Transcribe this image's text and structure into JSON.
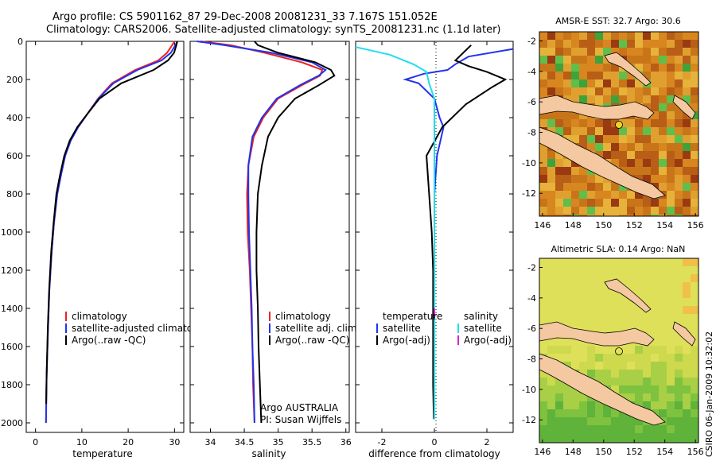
{
  "header": {
    "line1": "Argo profile: CS 5901162_87 29-Dec-2008 20081231_33 7.167S 151.052E",
    "line2": "Climatology: CARS2006. Satellite-adjusted climatology: synTS_20081231.nc (1.1d later)"
  },
  "credit": "CSIRO 06-Jan-2009 10:32:02",
  "colors": {
    "red": "#ee2222",
    "blue": "#2233ee",
    "black": "#000000",
    "cyan": "#22ddee",
    "magenta": "#dd22dd"
  },
  "chart_data": [
    {
      "type": "line",
      "id": "temperature",
      "xlabel": "temperature",
      "ylabel": "",
      "xlim": [
        -2,
        32
      ],
      "ylim": [
        2050,
        0
      ],
      "xticks": [
        0,
        10,
        20,
        30
      ],
      "yticks": [
        0,
        200,
        400,
        600,
        800,
        1000,
        1200,
        1400,
        1600,
        1800,
        2000
      ],
      "legend": [
        "climatology",
        "satellite-adjusted climatology",
        "Argo(..raw -QC)"
      ],
      "series": [
        {
          "name": "climatology",
          "color": "red",
          "x": [
            30,
            29.5,
            28.4,
            26.5,
            21.5,
            16.5,
            13.5,
            11.2,
            9.2,
            7.6,
            6.4,
            5.5,
            4.7,
            4.0,
            3.5,
            3.0,
            2.7,
            2.4,
            2.25
          ],
          "y": [
            0,
            20,
            60,
            100,
            150,
            220,
            300,
            380,
            450,
            520,
            600,
            700,
            800,
            950,
            1100,
            1300,
            1500,
            1750,
            2000
          ]
        },
        {
          "name": "satellite-adjusted climatology",
          "color": "blue",
          "x": [
            30.6,
            30.2,
            29.2,
            27.2,
            22.0,
            16.8,
            13.6,
            11.2,
            9.2,
            7.6,
            6.4,
            5.5,
            4.7,
            4.0,
            3.5,
            3.0,
            2.7,
            2.4,
            2.25
          ],
          "y": [
            0,
            20,
            60,
            100,
            150,
            220,
            300,
            380,
            450,
            520,
            600,
            700,
            800,
            950,
            1100,
            1300,
            1500,
            1750,
            2000
          ]
        },
        {
          "name": "Argo(..raw -QC)",
          "color": "black",
          "x": [
            30.6,
            30.4,
            29.9,
            28.6,
            25.5,
            18.5,
            13.8,
            11.2,
            9.0,
            7.4,
            6.2,
            5.3,
            4.5,
            3.9,
            3.4,
            2.95,
            2.65,
            2.4,
            2.3
          ],
          "y": [
            0,
            20,
            60,
            100,
            150,
            220,
            300,
            380,
            450,
            520,
            600,
            700,
            800,
            950,
            1100,
            1300,
            1500,
            1750,
            1900
          ]
        }
      ]
    },
    {
      "type": "line",
      "id": "salinity",
      "xlabel": "salinity",
      "ylabel": "",
      "xlim": [
        33.7,
        36.05
      ],
      "ylim": [
        2050,
        0
      ],
      "xticks": [
        34,
        34.5,
        35,
        35.5,
        36
      ],
      "legend": [
        "climatology",
        "satellite adj. clim.",
        "Argo(..raw -QC)"
      ],
      "notes": [
        "Argo AUSTRALIA",
        "PI: Susan Wijffels"
      ],
      "series": [
        {
          "name": "climatology",
          "color": "red",
          "x": [
            33.85,
            34.3,
            34.8,
            35.35,
            35.65,
            35.62,
            35.35,
            35.0,
            34.78,
            34.64,
            34.56,
            34.54,
            34.55,
            34.58,
            34.6,
            34.62,
            34.63,
            34.65
          ],
          "y": [
            0,
            20,
            60,
            110,
            150,
            180,
            230,
            300,
            400,
            500,
            650,
            800,
            1000,
            1200,
            1400,
            1600,
            1800,
            2000
          ]
        },
        {
          "name": "satellite adj. clim.",
          "color": "blue",
          "x": [
            33.8,
            34.2,
            34.9,
            35.5,
            35.7,
            35.6,
            35.32,
            34.98,
            34.76,
            34.62,
            34.56,
            34.56,
            34.57,
            34.59,
            34.61,
            34.62,
            34.64,
            34.65
          ],
          "y": [
            0,
            20,
            60,
            110,
            150,
            180,
            230,
            300,
            400,
            500,
            650,
            800,
            1000,
            1200,
            1400,
            1600,
            1800,
            2000
          ]
        },
        {
          "name": "Argo(..raw -QC)",
          "color": "black",
          "x": [
            34.65,
            34.7,
            35.0,
            35.55,
            35.78,
            35.83,
            35.6,
            35.25,
            35.0,
            34.85,
            34.76,
            34.7,
            34.68,
            34.68,
            34.7,
            34.71,
            34.73,
            34.75
          ],
          "y": [
            0,
            20,
            60,
            110,
            150,
            180,
            230,
            300,
            400,
            500,
            650,
            800,
            1000,
            1200,
            1400,
            1600,
            1800,
            2000
          ]
        }
      ]
    },
    {
      "type": "line",
      "id": "difference",
      "xlabel": "difference from climatology",
      "ylabel": "",
      "xlim": [
        -3,
        3
      ],
      "ylim": [
        2050,
        0
      ],
      "xticks": [
        -2,
        0,
        2
      ],
      "legend_headers": [
        "temperature",
        "salinity"
      ],
      "legend": [
        "satellite",
        "Argo(-adj)",
        "satellite",
        "Argo(-adj)"
      ],
      "series": [
        {
          "name": "temperature satellite",
          "color": "blue",
          "x": [
            3.0,
            1.3,
            0.8,
            0.5,
            -0.4,
            -1.1,
            -0.6,
            0.0,
            0.2,
            0.35,
            0.1,
            0.0,
            0.0,
            0.0,
            0.0,
            0.0
          ],
          "y": [
            40,
            80,
            120,
            150,
            170,
            200,
            220,
            300,
            400,
            450,
            600,
            800,
            1000,
            1400,
            1700,
            1980
          ]
        },
        {
          "name": "temperature Argo(-adj)",
          "color": "black",
          "x": [
            1.4,
            1.1,
            0.8,
            1.3,
            2.0,
            2.7,
            2.2,
            1.2,
            0.3,
            -0.3,
            -0.2,
            -0.1,
            -0.05,
            -0.05,
            -0.05,
            -0.02
          ],
          "y": [
            20,
            60,
            100,
            130,
            160,
            200,
            240,
            330,
            450,
            600,
            800,
            1000,
            1200,
            1500,
            1800,
            1980
          ]
        },
        {
          "name": "salinity satellite",
          "color": "cyan",
          "x": [
            -3.0,
            -1.7,
            -0.8,
            -0.3,
            -0.2,
            0.0,
            0.0,
            0.0,
            0.0,
            0.0,
            0.0
          ],
          "y": [
            30,
            70,
            120,
            160,
            220,
            300,
            500,
            800,
            1200,
            1600,
            1980
          ]
        },
        {
          "name": "salinity Argo(-adj)",
          "color": "magenta",
          "x": [
            0.0,
            0.0
          ],
          "y": [
            1400,
            1450
          ]
        }
      ]
    },
    {
      "type": "heatmap",
      "id": "sst-map",
      "title": "AMSR-E SST: 32.7 Argo: 30.6",
      "xlim": [
        145.8,
        156.2
      ],
      "ylim": [
        -13.5,
        -1.4
      ],
      "xticks": [
        146,
        148,
        150,
        152,
        154,
        156
      ],
      "yticks": [
        -2,
        -4,
        -6,
        -8,
        -10,
        -12
      ]
    },
    {
      "type": "heatmap",
      "id": "sla-map",
      "title": "Altimetric SLA: 0.14 Argo: NaN",
      "xlim": [
        145.8,
        156.2
      ],
      "ylim": [
        -13.5,
        -1.4
      ],
      "xticks": [
        146,
        148,
        150,
        152,
        154,
        156
      ],
      "yticks": [
        -2,
        -4,
        -6,
        -8,
        -10,
        -12
      ]
    }
  ]
}
